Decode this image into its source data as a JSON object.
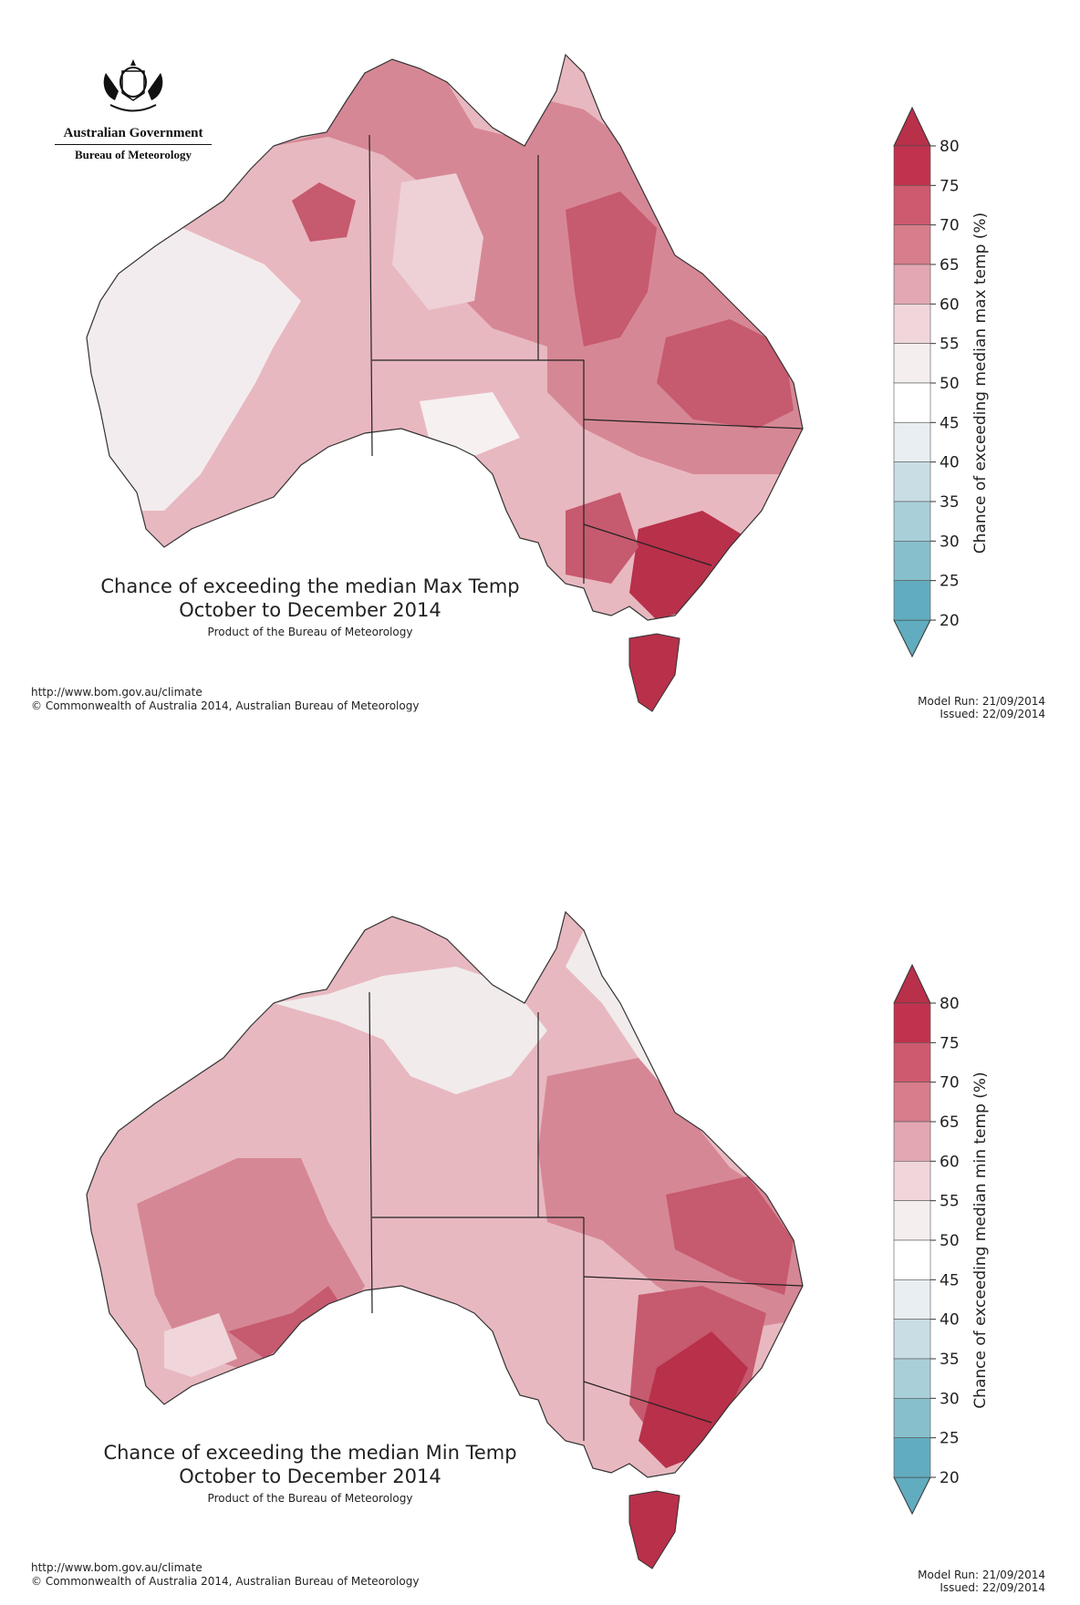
{
  "agency": {
    "government": "Australian Government",
    "bureau": "Bureau of Meteorology"
  },
  "legend_ticks": [
    "80",
    "75",
    "70",
    "65",
    "60",
    "55",
    "50",
    "45",
    "40",
    "35",
    "30",
    "25",
    "20"
  ],
  "legend_colors": [
    "#c0324d",
    "#cd5a6f",
    "#d77d8b",
    "#e3a7b1",
    "#f0d6da",
    "#f5eeef",
    "#ffffff",
    "#e8eef1",
    "#c8dee4",
    "#a9cfd8",
    "#87bfcc",
    "#61acbf"
  ],
  "maps": [
    {
      "id": "max",
      "title_line1": "Chance of exceeding the median Max Temp",
      "title_line2": "October to December 2014",
      "product": "Product of the Bureau of Meteorology",
      "legend_label": "Chance of exceeding median max temp (%)",
      "url": "http://www.bom.gov.au/climate",
      "copyright": "© Commonwealth of Australia 2014, Australian Bureau of Meteorology",
      "model_run": "Model Run: 21/09/2014",
      "issued": "Issued: 22/09/2014"
    },
    {
      "id": "min",
      "title_line1": "Chance of exceeding the median Min Temp",
      "title_line2": "October to December 2014",
      "product": "Product of the Bureau of Meteorology",
      "legend_label": "Chance of exceeding median min temp (%)",
      "url": "http://www.bom.gov.au/climate",
      "copyright": "© Commonwealth of Australia 2014, Australian Bureau of Meteorology",
      "model_run": "Model Run: 21/09/2014",
      "issued": "Issued: 22/09/2014"
    }
  ]
}
